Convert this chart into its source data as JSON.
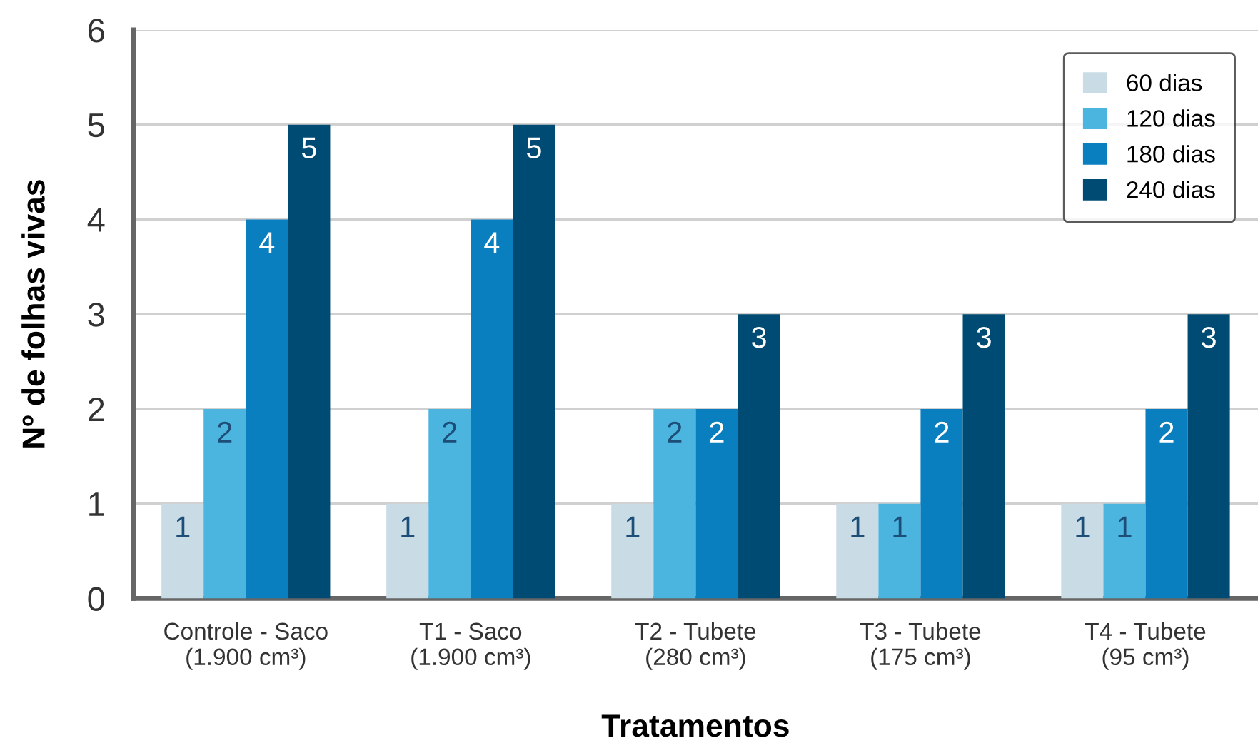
{
  "chart_data": {
    "type": "bar",
    "xlabel": "Tratamentos",
    "ylabel": "Nº de folhas vivas",
    "categories": [
      "Controle - Saco\n(1.900 cm³)",
      "T1 - Saco\n(1.900 cm³)",
      "T2 - Tubete\n(280 cm³)",
      "T3 - Tubete\n(175 cm³)",
      "T4 - Tubete\n(95 cm³)"
    ],
    "series": [
      {
        "name": "60 dias",
        "color": "#c9dbe5",
        "values": [
          1,
          1,
          1,
          1,
          1
        ]
      },
      {
        "name": "120 dias",
        "color": "#4bb5e0",
        "values": [
          2,
          2,
          2,
          1,
          1
        ]
      },
      {
        "name": "180 dias",
        "color": "#0a7fc0",
        "values": [
          4,
          4,
          2,
          2,
          2
        ]
      },
      {
        "name": "240 dias",
        "color": "#004b73",
        "values": [
          5,
          5,
          3,
          3,
          3
        ]
      }
    ],
    "ylim": [
      0,
      6
    ],
    "yticks": [
      0,
      1,
      2,
      3,
      4,
      5,
      6
    ],
    "grid": "y",
    "legend": "top right",
    "data_labels": true
  }
}
